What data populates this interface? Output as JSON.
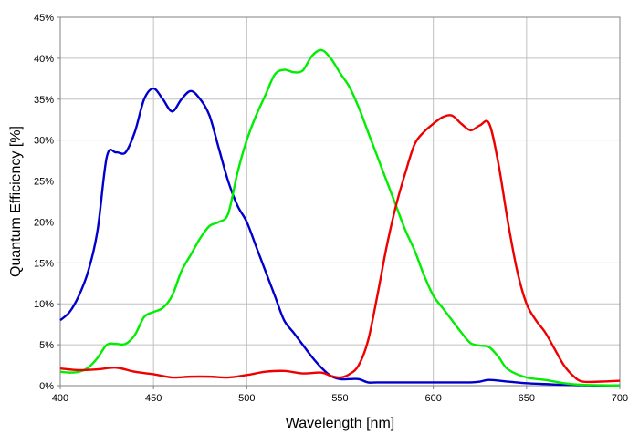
{
  "chart_data": {
    "type": "line",
    "title": "",
    "xlabel": "Wavelength [nm]",
    "ylabel": "Quantum Efficiency [%]",
    "xlim": [
      400,
      700
    ],
    "ylim": [
      0,
      45
    ],
    "x_ticks": [
      400,
      450,
      500,
      550,
      600,
      650,
      700
    ],
    "y_ticks": [
      0,
      5,
      10,
      15,
      20,
      25,
      30,
      35,
      40,
      45
    ],
    "x_tick_labels": [
      "400",
      "450",
      "500",
      "550",
      "600",
      "650",
      "700"
    ],
    "y_tick_labels": [
      "0%",
      "5%",
      "10%",
      "15%",
      "20%",
      "25%",
      "30%",
      "35%",
      "40%",
      "45%"
    ],
    "grid": true,
    "legend": "none",
    "series": [
      {
        "color": "#0000cc",
        "x": [
          400,
          405,
          410,
          415,
          420,
          425,
          430,
          435,
          440,
          445,
          450,
          455,
          460,
          465,
          470,
          475,
          480,
          485,
          490,
          495,
          500,
          505,
          510,
          515,
          520,
          525,
          530,
          535,
          540,
          545,
          550,
          555,
          560,
          565,
          570,
          580,
          590,
          600,
          610,
          620,
          625,
          630,
          640,
          650,
          660,
          670,
          680,
          690,
          700
        ],
        "values": [
          8,
          9,
          11,
          14,
          19,
          28,
          28.5,
          28.5,
          31,
          35,
          36.3,
          35,
          33.5,
          35,
          36,
          35,
          33,
          29,
          25,
          22,
          20,
          17,
          14,
          11,
          8,
          6.5,
          5,
          3.5,
          2.2,
          1.2,
          0.8,
          0.8,
          0.8,
          0.4,
          0.4,
          0.4,
          0.4,
          0.4,
          0.4,
          0.4,
          0.5,
          0.7,
          0.5,
          0.3,
          0.2,
          0.1,
          0.05,
          0,
          0
        ]
      },
      {
        "color": "#00ee00",
        "x": [
          400,
          405,
          410,
          415,
          420,
          425,
          430,
          435,
          440,
          445,
          450,
          455,
          460,
          465,
          470,
          475,
          480,
          485,
          490,
          495,
          500,
          505,
          510,
          515,
          520,
          525,
          530,
          535,
          540,
          545,
          550,
          555,
          560,
          565,
          570,
          575,
          580,
          585,
          590,
          595,
          600,
          605,
          610,
          615,
          620,
          625,
          630,
          635,
          640,
          650,
          660,
          670,
          680,
          690,
          700
        ],
        "values": [
          1.7,
          1.6,
          1.7,
          2.2,
          3.4,
          5,
          5.1,
          5.1,
          6.2,
          8.4,
          9,
          9.5,
          11,
          14,
          16,
          18,
          19.5,
          20,
          21,
          26,
          30,
          33,
          35.5,
          38,
          38.6,
          38.3,
          38.5,
          40.3,
          41,
          40,
          38.2,
          36.5,
          34,
          31,
          28,
          25,
          22,
          19,
          16.5,
          13.5,
          11,
          9.5,
          8,
          6.5,
          5.2,
          4.9,
          4.7,
          3.5,
          2,
          1,
          0.7,
          0.3,
          0.1,
          0.05,
          0
        ]
      },
      {
        "color": "#ee0000",
        "x": [
          400,
          410,
          420,
          430,
          440,
          450,
          460,
          470,
          480,
          490,
          500,
          510,
          520,
          530,
          540,
          545,
          550,
          555,
          560,
          565,
          570,
          575,
          580,
          585,
          590,
          595,
          600,
          605,
          610,
          615,
          620,
          625,
          630,
          635,
          640,
          645,
          650,
          655,
          660,
          665,
          670,
          675,
          680,
          690,
          700
        ],
        "values": [
          2.1,
          1.9,
          2.0,
          2.2,
          1.7,
          1.4,
          1.0,
          1.1,
          1.1,
          1.0,
          1.3,
          1.7,
          1.8,
          1.5,
          1.6,
          1.2,
          1.0,
          1.4,
          2.5,
          5.5,
          11,
          17,
          22,
          26,
          29.5,
          31,
          32,
          32.8,
          33,
          32,
          31.2,
          31.8,
          32,
          27,
          20,
          14,
          10,
          8,
          6.5,
          4.5,
          2.5,
          1.2,
          0.5,
          0.5,
          0.6
        ]
      }
    ]
  }
}
